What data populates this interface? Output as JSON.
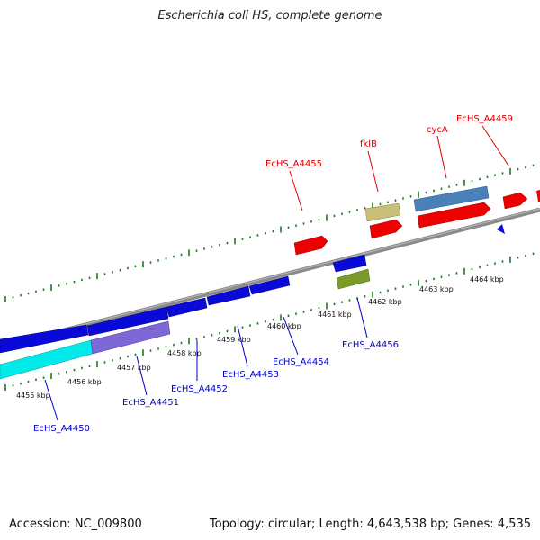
{
  "title": "Escherichia coli HS, complete genome",
  "footer": {
    "accession": "Accession: NC_009800",
    "summary": "Topology: circular; Length: 4,643,538 bp; Genes: 4,535"
  },
  "colors": {
    "backbone": "#7a7a7a",
    "tick": "#1a7a1a",
    "label_red": "#dd0000",
    "label_blue": "#0000cc"
  },
  "ticks": [
    {
      "label": "4455 kbp"
    },
    {
      "label": "4456 kbp"
    },
    {
      "label": "4457 kbp"
    },
    {
      "label": "4458 kbp"
    },
    {
      "label": "4459 kbp"
    },
    {
      "label": "4460 kbp"
    },
    {
      "label": "4461 kbp"
    },
    {
      "label": "4462 kbp"
    },
    {
      "label": "4463 kbp"
    },
    {
      "label": "4464 kbp"
    }
  ],
  "gene_labels": [
    {
      "text": "EcHS_A4455",
      "color": "red"
    },
    {
      "text": "fklB",
      "color": "red"
    },
    {
      "text": "cycA",
      "color": "red"
    },
    {
      "text": "EcHS_A4459",
      "color": "red"
    },
    {
      "text": "EcHS_A4450",
      "color": "blue"
    },
    {
      "text": "EcHS_A4451",
      "color": "blue"
    },
    {
      "text": "EcHS_A4452",
      "color": "blue"
    },
    {
      "text": "EcHS_A4453",
      "color": "blue"
    },
    {
      "text": "EcHS_A4454",
      "color": "blue"
    },
    {
      "text": "EcHS_A4456",
      "color": "blue"
    }
  ]
}
